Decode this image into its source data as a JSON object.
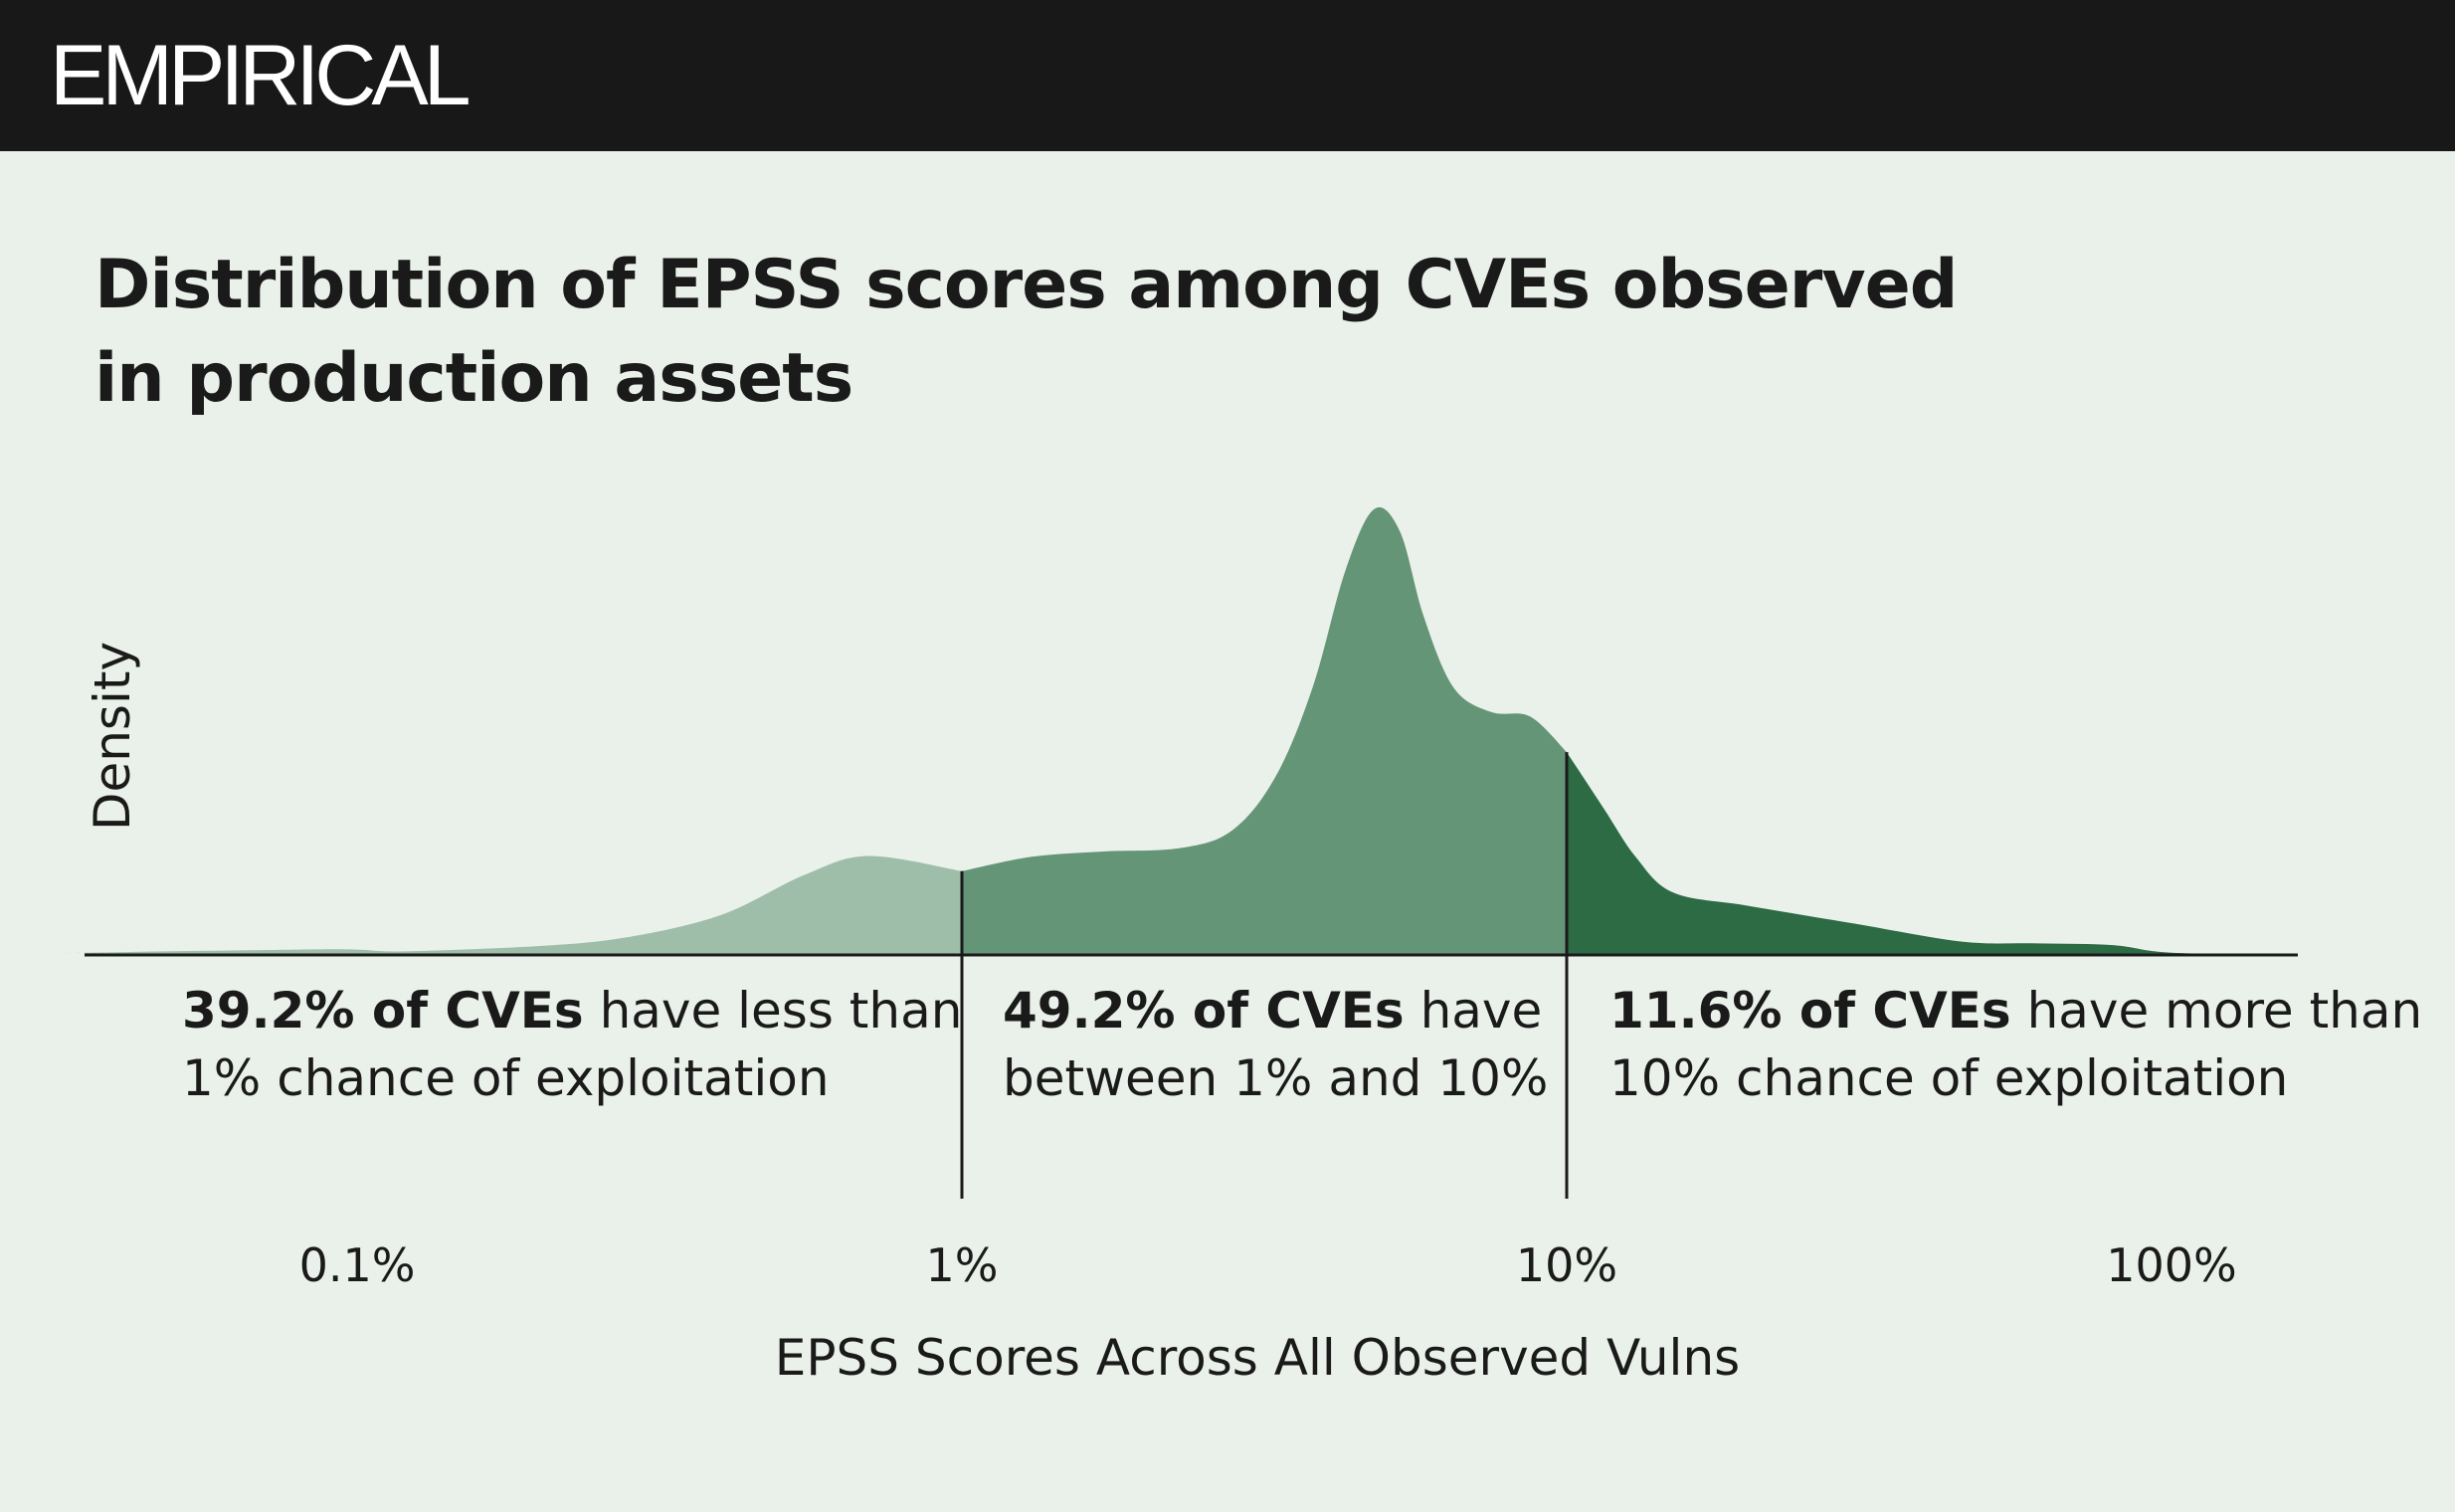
{
  "brand": {
    "name": "EMPIRICAL"
  },
  "title_lines": [
    "Distribution of EPSS scores among CVEs observed",
    "in production assets"
  ],
  "colors": {
    "low": "#9FBEA9",
    "mid": "#659577",
    "high": "#2D6B45",
    "header": "#181818",
    "background": "#EAF1EA"
  },
  "annotations": [
    {
      "bold": "39.2% of CVEs",
      "rest": " have less than",
      "line2": "1% chance of exploitation"
    },
    {
      "bold": "49.2% of CVEs",
      "rest": " have",
      "line2": "between 1% and 10%"
    },
    {
      "bold": "11.6% of CVEs",
      "rest": " have more than",
      "line2": "10% chance of exploitation"
    }
  ],
  "chart_data": {
    "type": "area",
    "title": "Distribution of EPSS scores among CVEs observed in production assets",
    "xlabel": "EPSS Scores Across All Observed Vulns",
    "ylabel": "Density",
    "x_scale": "log",
    "xlim": [
      0.03,
      150
    ],
    "ylim": [
      0,
      1
    ],
    "x_ticks": [
      {
        "value": 0.1,
        "label": "0.1%"
      },
      {
        "value": 1,
        "label": "1%"
      },
      {
        "value": 10,
        "label": "10%"
      },
      {
        "value": 100,
        "label": "100%"
      }
    ],
    "regions": [
      {
        "from": 0.03,
        "to": 1,
        "share": 39.2
      },
      {
        "from": 1,
        "to": 10,
        "share": 49.2
      },
      {
        "from": 10,
        "to": 150,
        "share": 11.6
      }
    ],
    "dividers": [
      1,
      10
    ],
    "density": {
      "x": [
        0.035,
        0.08,
        0.1,
        0.12,
        0.2,
        0.28,
        0.4,
        0.55,
        0.7,
        1.0,
        1.3,
        1.7,
        2.3,
        2.8,
        3.3,
        3.8,
        4.3,
        4.8,
        5.3,
        5.8,
        6.5,
        7.5,
        8.7,
        10.0,
        11.5,
        13,
        15,
        20,
        30,
        45,
        60,
        80,
        100,
        150
      ],
      "y": [
        0.005,
        0.012,
        0.012,
        0.008,
        0.02,
        0.04,
        0.09,
        0.18,
        0.222,
        0.188,
        0.22,
        0.232,
        0.24,
        0.28,
        0.4,
        0.6,
        0.86,
        1.0,
        0.95,
        0.76,
        0.6,
        0.545,
        0.535,
        0.455,
        0.33,
        0.22,
        0.14,
        0.11,
        0.07,
        0.03,
        0.026,
        0.022,
        0.005,
        0.0
      ]
    }
  }
}
